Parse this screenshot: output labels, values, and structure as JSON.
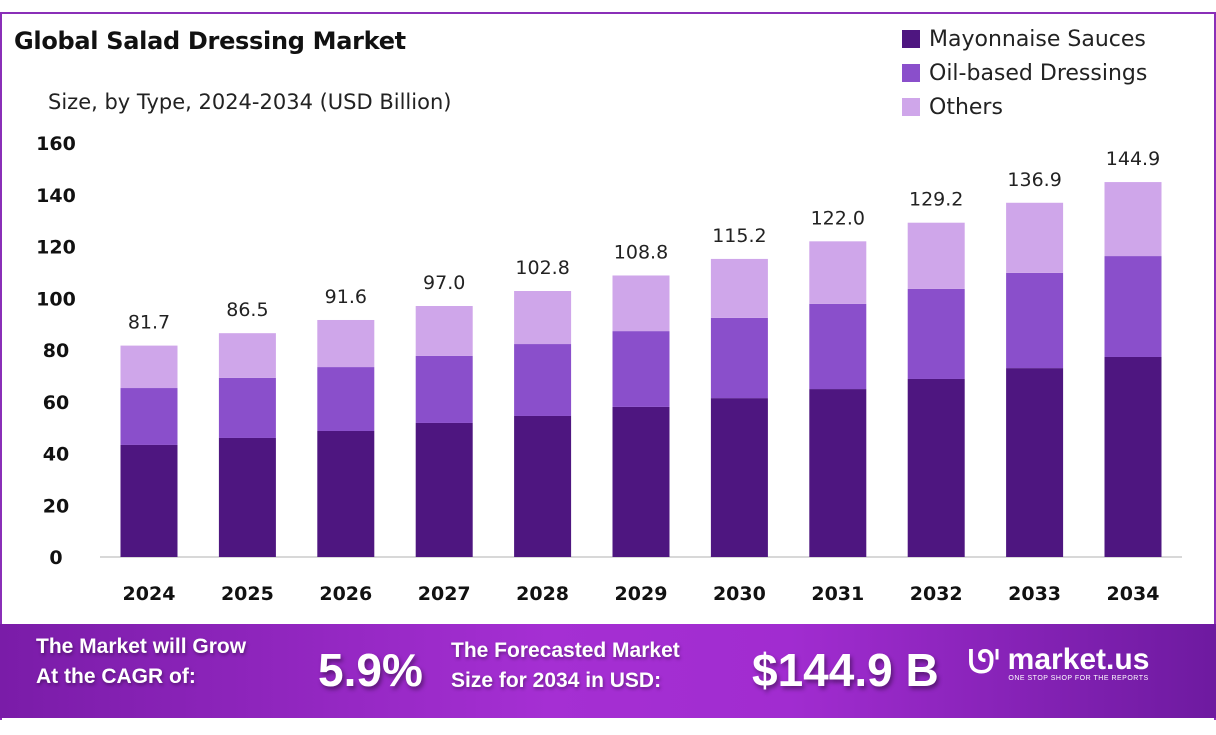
{
  "chart_data": {
    "type": "bar",
    "stacked": true,
    "title": "Global Salad Dressing Market",
    "subtitle": "Size, by Type, 2024-2034 (USD Billion)",
    "xlabel": "",
    "ylabel": "",
    "ylim": [
      0,
      160
    ],
    "yticks": [
      0,
      20,
      40,
      60,
      80,
      100,
      120,
      140,
      160
    ],
    "grid": false,
    "legend_position": "top-right",
    "categories": [
      "2024",
      "2025",
      "2026",
      "2027",
      "2028",
      "2029",
      "2030",
      "2031",
      "2032",
      "2033",
      "2034"
    ],
    "totals": [
      "81.7",
      "86.5",
      "91.6",
      "97.0",
      "102.8",
      "108.8",
      "115.2",
      "122.0",
      "129.2",
      "136.9",
      "144.9"
    ],
    "series": [
      {
        "name": "Mayonnaise Sauces",
        "color": "#4e1680",
        "values": [
          43.3,
          46.0,
          48.7,
          51.8,
          54.5,
          58.0,
          61.4,
          64.9,
          68.8,
          73.0,
          77.3
        ]
      },
      {
        "name": "Oil-based Dressings",
        "color": "#8a4fcb",
        "values": [
          22.0,
          23.2,
          24.7,
          25.9,
          27.8,
          29.3,
          31.0,
          32.9,
          34.8,
          36.8,
          39.0
        ]
      },
      {
        "name": "Others",
        "color": "#cfa6ea",
        "values": [
          16.4,
          17.3,
          18.2,
          19.3,
          20.5,
          21.5,
          22.8,
          24.2,
          25.6,
          27.1,
          28.6
        ]
      }
    ]
  },
  "footer": {
    "cagr_label_1": "The Market will Grow",
    "cagr_label_2": "At the CAGR of:",
    "cagr_value": "5.9%",
    "forecast_label_1": "The Forecasted Market",
    "forecast_label_2": "Size for 2034 in USD:",
    "forecast_value": "$144.9 B",
    "brand": "market.us",
    "brand_tagline": "ONE STOP SHOP FOR THE REPORTS",
    "brand_icon": "market-us-logo-icon"
  }
}
